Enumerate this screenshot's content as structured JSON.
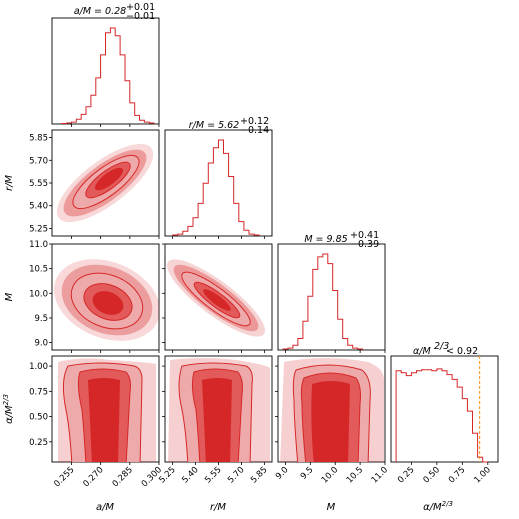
{
  "colors": {
    "red": "#d62728",
    "light": "#eeaaaa",
    "mid": "#e35a5a",
    "dark": "#d62728",
    "marker": "#ff8c1a"
  },
  "titles": {
    "p0": {
      "prefix": "a/M = 0.28",
      "sup": "+0.01",
      "sub": "−0.01"
    },
    "p1": {
      "prefix": "r/M = 5.62",
      "sup": "+0.12",
      "sub": "−0.14"
    },
    "p2": {
      "prefix": "M = 9.85",
      "sup": "+0.41",
      "sub": "−0.39"
    },
    "p3": {
      "prefix": "α/M",
      "exp": "2/3",
      "suffix": " < 0.92"
    }
  },
  "axis_labels": {
    "a": "a/M",
    "r": "r/M",
    "m": "M",
    "alpha_base": "α/M",
    "alpha_exp": "2/3"
  },
  "chart_data": {
    "type": "corner",
    "parameters": [
      {
        "name": "a/M",
        "range": [
          0.245,
          0.3
        ],
        "ticks": [
          "0.255",
          "0.270",
          "0.285",
          "0.300"
        ],
        "tick_values": [
          0.255,
          0.27,
          0.285,
          0.3
        ]
      },
      {
        "name": "r/M",
        "range": [
          5.2,
          5.9
        ],
        "ticks": [
          "5.25",
          "5.40",
          "5.55",
          "5.70",
          "5.85"
        ],
        "tick_values": [
          5.25,
          5.4,
          5.55,
          5.7,
          5.85
        ]
      },
      {
        "name": "M",
        "range": [
          8.85,
          11.0
        ],
        "ticks": [
          "9.0",
          "9.5",
          "10.0",
          "10.5",
          "11.0"
        ],
        "tick_values": [
          9.0,
          9.5,
          10.0,
          10.5,
          11.0
        ]
      },
      {
        "name": "α/M^2/3",
        "range": [
          0.05,
          1.1
        ],
        "ticks": [
          "0.25",
          "0.50",
          "0.75",
          "1.00"
        ],
        "tick_values": [
          0.25,
          0.5,
          0.75,
          1.0
        ]
      }
    ],
    "histograms": [
      {
        "param": "a/M",
        "edges_start": 0.25,
        "bin_width": 0.0025,
        "counts": [
          0.005,
          0.01,
          0.02,
          0.05,
          0.1,
          0.18,
          0.3,
          0.48,
          0.72,
          0.95,
          1.0,
          0.92,
          0.72,
          0.45,
          0.22,
          0.09,
          0.04,
          0.02,
          0.01
        ]
      },
      {
        "param": "r/M",
        "edges_start": 5.25,
        "bin_width": 0.0333,
        "counts": [
          0.01,
          0.02,
          0.05,
          0.1,
          0.19,
          0.34,
          0.55,
          0.76,
          0.92,
          1.0,
          0.86,
          0.62,
          0.34,
          0.15,
          0.06,
          0.02,
          0.01
        ]
      },
      {
        "param": "M",
        "edges_start": 8.95,
        "bin_width": 0.1,
        "counts": [
          0.01,
          0.02,
          0.05,
          0.12,
          0.3,
          0.56,
          0.84,
          0.97,
          1.0,
          0.9,
          0.62,
          0.32,
          0.12,
          0.05,
          0.02,
          0.01
        ]
      },
      {
        "param": "α/M^2/3",
        "edges_start": 0.1,
        "bin_width": 0.05,
        "counts": [
          0.95,
          0.93,
          0.9,
          0.93,
          0.95,
          0.96,
          0.96,
          0.95,
          0.97,
          0.95,
          0.91,
          0.86,
          0.78,
          0.66,
          0.53,
          0.3,
          0.05,
          0.0
        ]
      }
    ],
    "upper_limit": {
      "param": "α/M^2/3",
      "value": 0.92
    }
  }
}
